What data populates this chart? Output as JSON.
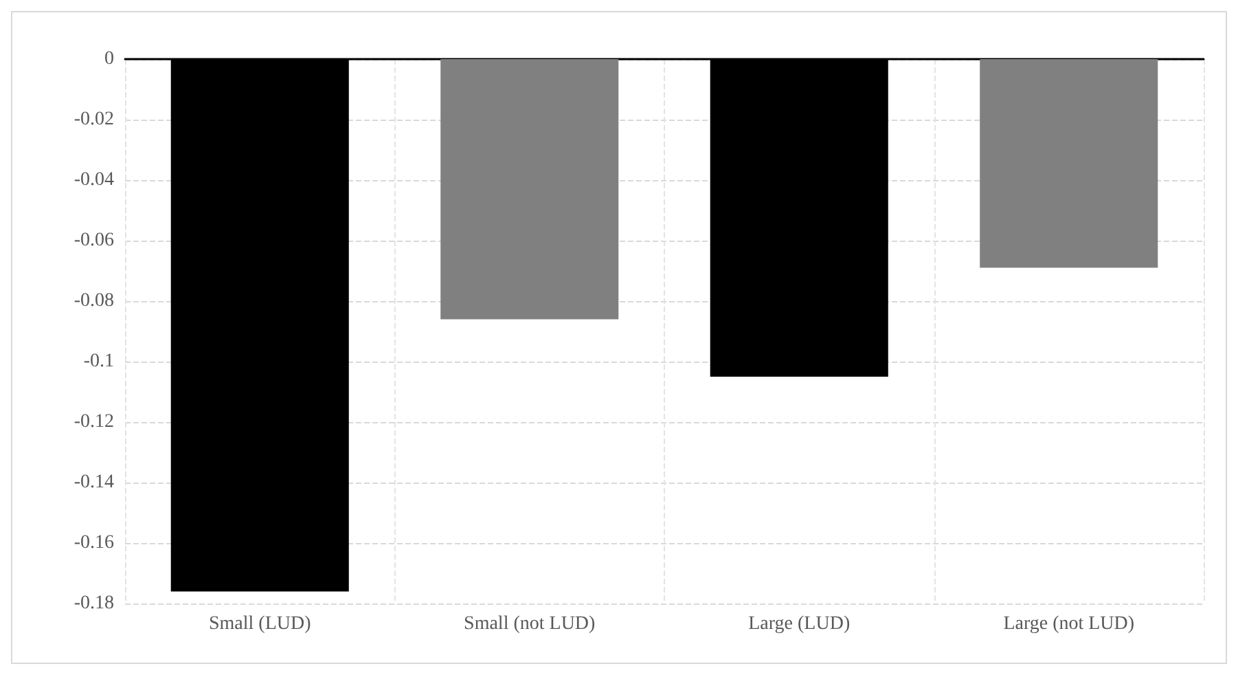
{
  "chart_data": {
    "type": "bar",
    "categories": [
      "Small (LUD)",
      "Small (not LUD)",
      "Large (LUD)",
      "Large (not LUD)"
    ],
    "values": [
      -0.176,
      -0.086,
      -0.105,
      -0.069
    ],
    "colors": [
      "#000000",
      "#808080",
      "#000000",
      "#808080"
    ],
    "ylim": [
      -0.18,
      0
    ],
    "yticks": [
      0,
      -0.02,
      -0.04,
      -0.06,
      -0.08,
      -0.1,
      -0.12,
      -0.14,
      -0.16,
      -0.18
    ],
    "grid": true
  }
}
